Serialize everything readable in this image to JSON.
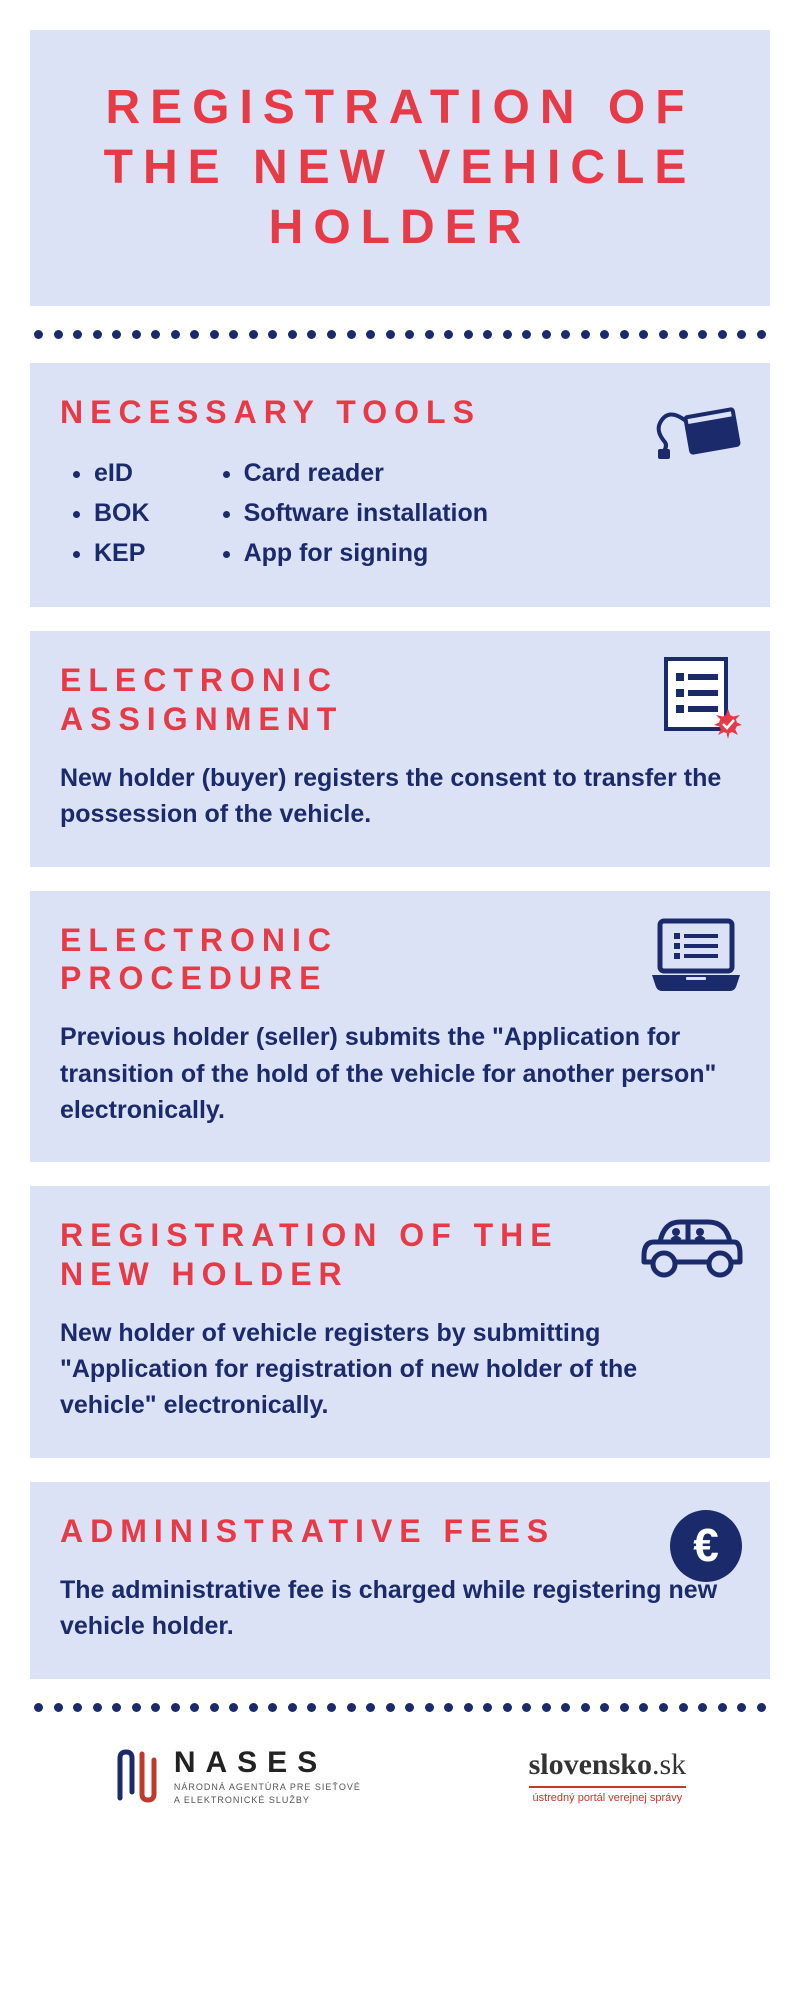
{
  "header": {
    "title": "REGISTRATION OF THE NEW VEHICLE HOLDER"
  },
  "colors": {
    "accent_red": "#e63a46",
    "navy": "#1b2a6b",
    "panel_bg": "#dce2f5",
    "page_bg": "#ffffff"
  },
  "typography": {
    "title_fontsize": 48,
    "section_title_fontsize": 32,
    "body_fontsize": 25,
    "title_letter_spacing": 10,
    "section_letter_spacing": 7
  },
  "sections": {
    "tools": {
      "title": "NECESSARY TOOLS",
      "col1": [
        "eID",
        "BOK",
        "KEP"
      ],
      "col2": [
        "Card reader",
        "Software installation",
        "App for signing"
      ],
      "icon": "card-reader-icon"
    },
    "assignment": {
      "title": "ELECTRONIC ASSIGNMENT",
      "body": "New holder (buyer) registers the consent to transfer the possession of the vehicle.",
      "icon": "checklist-icon"
    },
    "procedure": {
      "title": "ELECTRONIC PROCEDURE",
      "body": "Previous holder (seller) submits the \"Application for transition of the hold of the vehicle for another person\" electronically.",
      "icon": "laptop-icon"
    },
    "new_holder": {
      "title": "REGISTRATION OF THE NEW HOLDER",
      "body": "New holder of vehicle registers by submitting \"Application for registration of new holder of the vehicle\" electronically.",
      "icon": "car-icon"
    },
    "fees": {
      "title": "ADMINISTRATIVE FEES",
      "body": "The administrative fee is charged while registering new vehicle holder.",
      "icon": "euro-icon"
    }
  },
  "footer": {
    "nases": {
      "name": "NASES",
      "sub1": "NÁRODNÁ AGENTÚRA PRE SIEŤOVÉ",
      "sub2": "A ELEKTRONICKÉ SLUŽBY"
    },
    "slovensko": {
      "name_bold": "slovensko",
      "name_tld": ".sk",
      "sub": "ústredný portál verejnej správy"
    }
  }
}
